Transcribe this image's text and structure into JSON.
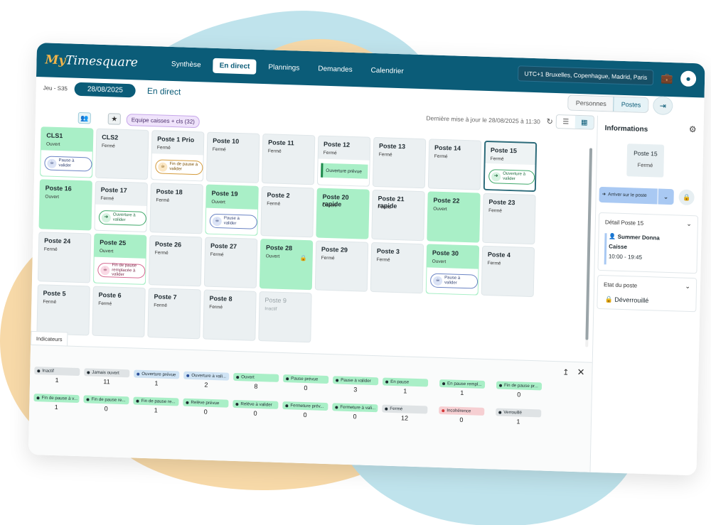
{
  "app": {
    "logo_my": "My",
    "logo_rest": "Timesquare",
    "nav": [
      "Synthèse",
      "En direct",
      "Plannings",
      "Demandes",
      "Calendrier"
    ],
    "active_nav": 1,
    "timezone": "UTC+1 Bruxelles, Copenhague, Madrid, Paris",
    "org_icon": "org-badge-icon",
    "account_icon": "account-icon"
  },
  "subheader": {
    "week": "Jeu - S35",
    "date": "28/08/2025",
    "mode": "En direct",
    "toggle": [
      "Personnes",
      "Postes"
    ],
    "active_toggle": 1
  },
  "toolbar": {
    "updated": "Dernière mise à jour le 28/08/2025 à 11:30",
    "team_chip": "Equipe caisses + cls (32)"
  },
  "cards": [
    {
      "name": "CLS1",
      "status": "Ouvert",
      "open": true,
      "badge": {
        "style": "blue",
        "text": "Pause à valider"
      }
    },
    {
      "name": "CLS2",
      "status": "Fermé",
      "open": false
    },
    {
      "name": "Poste 1 Prio",
      "status": "Fermé",
      "open": false,
      "badge": {
        "style": "orange",
        "text": "Fin de pause à valider"
      }
    },
    {
      "name": "Poste 10",
      "status": "Fermé",
      "open": false
    },
    {
      "name": "Poste 11",
      "status": "Fermé",
      "open": false
    },
    {
      "name": "Poste 12",
      "status": "Fermé",
      "open": false,
      "plan": "Ouverture prévue"
    },
    {
      "name": "Poste 13",
      "status": "Fermé",
      "open": false
    },
    {
      "name": "Poste 14",
      "status": "Fermé",
      "open": false
    },
    {
      "name": "Poste 15",
      "status": "Fermé",
      "open": false,
      "selected": true,
      "badge": {
        "style": "green",
        "text": "Ouverture à valider"
      }
    },
    {
      "name": "Poste 16",
      "status": "Ouvert",
      "open": true
    },
    {
      "name": "Poste 17",
      "status": "Fermé",
      "open": false,
      "badge": {
        "style": "green",
        "text": "Ouverture à valider"
      }
    },
    {
      "name": "Poste 18",
      "status": "Fermé",
      "open": false
    },
    {
      "name": "Poste 19",
      "status": "Ouvert",
      "open": true,
      "badge": {
        "style": "blue",
        "text": "Pause à valider"
      }
    },
    {
      "name": "Poste 2",
      "status": "Fermé",
      "open": false
    },
    {
      "name": "Poste 20 rapide",
      "status": "Ouvert",
      "open": true
    },
    {
      "name": "Poste 21 rapide",
      "status": "Fermé",
      "open": false
    },
    {
      "name": "Poste 22",
      "status": "Ouvert",
      "open": true
    },
    {
      "name": "Poste 23",
      "status": "Fermé",
      "open": false
    },
    {
      "name": "Poste 24",
      "status": "Fermé",
      "open": false
    },
    {
      "name": "Poste 25",
      "status": "Ouvert",
      "open": true,
      "badge": {
        "style": "pink",
        "text": "Fin de pause remplacée à valider"
      }
    },
    {
      "name": "Poste 26",
      "status": "Fermé",
      "open": false
    },
    {
      "name": "Poste 27",
      "status": "Fermé",
      "open": false
    },
    {
      "name": "Poste 28",
      "status": "Ouvert",
      "open": true,
      "locked": true
    },
    {
      "name": "Poste 29",
      "status": "Fermé",
      "open": false
    },
    {
      "name": "Poste 3",
      "status": "Fermé",
      "open": false
    },
    {
      "name": "Poste 30",
      "status": "Ouvert",
      "open": true,
      "badge": {
        "style": "blue",
        "text": "Pause à valider"
      }
    },
    {
      "name": "Poste 4",
      "status": "Fermé",
      "open": false
    },
    {
      "name": "Poste 5",
      "status": "Fermé",
      "open": false
    },
    {
      "name": "Poste 6",
      "status": "Fermé",
      "open": false
    },
    {
      "name": "Poste 7",
      "status": "Fermé",
      "open": false
    },
    {
      "name": "Poste 8",
      "status": "Fermé",
      "open": false
    },
    {
      "name": "Poste 9",
      "status": "Inactif",
      "open": false,
      "inactive": true
    }
  ],
  "indicators": {
    "tab": "Indicateurs",
    "items": [
      {
        "label": "Inactif",
        "value": "1",
        "color": "grey"
      },
      {
        "label": "Jamais ouvert",
        "value": "11",
        "color": "grey"
      },
      {
        "label": "Ouverture prévue",
        "value": "1",
        "color": "blue"
      },
      {
        "label": "Ouverture à vali...",
        "value": "2",
        "color": "blue"
      },
      {
        "label": "Ouvert",
        "value": "8",
        "color": "green"
      },
      {
        "label": "Pause prévue",
        "value": "0",
        "color": "green"
      },
      {
        "label": "Pause à valider",
        "value": "3",
        "color": "green"
      },
      {
        "label": "En pause",
        "value": "1",
        "color": "green"
      },
      {
        "label": "En pause rempl...",
        "value": "1",
        "color": "green"
      },
      {
        "label": "Fin de pause pr...",
        "value": "0",
        "color": "green"
      },
      {
        "label": "Fin de pause à v...",
        "value": "1",
        "color": "green"
      },
      {
        "label": "Fin de pause re...",
        "value": "0",
        "color": "green"
      },
      {
        "label": "Fin de pause re...",
        "value": "1",
        "color": "green"
      },
      {
        "label": "Relève prévue",
        "value": "0",
        "color": "green"
      },
      {
        "label": "Relève à valider",
        "value": "0",
        "color": "green"
      },
      {
        "label": "Fermeture prév...",
        "value": "0",
        "color": "green"
      },
      {
        "label": "Fermeture à vali...",
        "value": "0",
        "color": "green"
      },
      {
        "label": "Fermé",
        "value": "12",
        "color": "grey"
      },
      {
        "label": "Incohérence",
        "value": "0",
        "color": "red"
      },
      {
        "label": "Verrouillé",
        "value": "1",
        "color": "grey"
      }
    ]
  },
  "side": {
    "title": "Informations",
    "post_name": "Poste 15",
    "post_status": "Fermé",
    "arrive_label": "Arriver sur le poste",
    "detail_title": "Détail Poste 15",
    "person": "Summer Donna",
    "role": "Caisse",
    "hours": "10:00 - 19:45",
    "state_title": "Etat du poste",
    "state_value": "Déverrouillé"
  }
}
